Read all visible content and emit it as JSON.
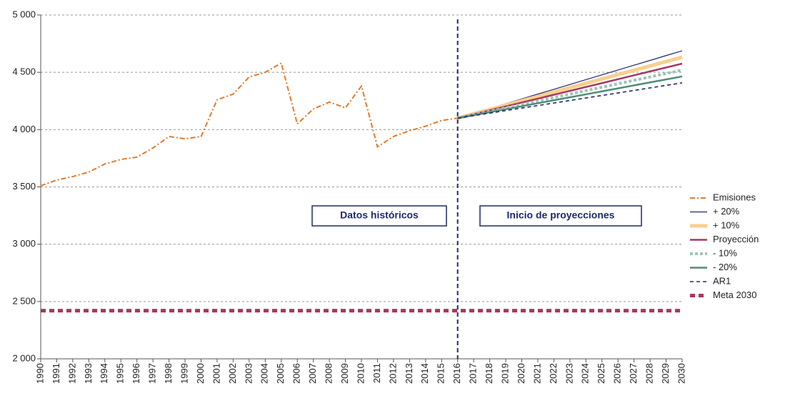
{
  "chart_data": {
    "type": "line",
    "categories": [
      "1990",
      "1991",
      "1992",
      "1993",
      "1994",
      "1995",
      "1996",
      "1997",
      "1998",
      "1999",
      "2000",
      "2001",
      "2002",
      "2003",
      "2004",
      "2005",
      "2006",
      "2007",
      "2008",
      "2009",
      "2010",
      "2011",
      "2012",
      "2013",
      "2014",
      "2015",
      "2016",
      "2017",
      "2018",
      "2019",
      "2020",
      "2021",
      "2022",
      "2023",
      "2024",
      "2025",
      "2026",
      "2027",
      "2028",
      "2029",
      "2030"
    ],
    "ylim": [
      2000,
      5000
    ],
    "yticks": [
      {
        "value": 2000,
        "label": "2 000"
      },
      {
        "value": 2500,
        "label": "2 500"
      },
      {
        "value": 3000,
        "label": "3 000"
      },
      {
        "value": 3500,
        "label": "3 500"
      },
      {
        "value": 4000,
        "label": "4 000"
      },
      {
        "value": 4500,
        "label": "4 500"
      },
      {
        "value": 5000,
        "label": "5 000"
      }
    ],
    "grid": true,
    "legend": "right",
    "projection_start": "2016",
    "annotations": [
      "Datos históricos",
      "Inicio de proyecciones"
    ],
    "series": [
      {
        "name": "Emisiones",
        "color": "#e07b2a",
        "style": "dashdot",
        "values": [
          3510,
          3560,
          3590,
          3630,
          3700,
          3740,
          3760,
          3840,
          3940,
          3920,
          3940,
          4260,
          4310,
          4460,
          4500,
          4580,
          4050,
          4180,
          4240,
          4190,
          4380,
          3850,
          3940,
          3990,
          4030,
          4080,
          4100,
          null,
          null,
          null,
          null,
          null,
          null,
          null,
          null,
          null,
          null,
          null,
          null,
          null,
          null
        ]
      },
      {
        "name": "+ 20%",
        "color": "#1f2a6b",
        "style": "thin",
        "values": [
          null,
          null,
          null,
          null,
          null,
          null,
          null,
          null,
          null,
          null,
          null,
          null,
          null,
          null,
          null,
          null,
          null,
          null,
          null,
          null,
          null,
          null,
          null,
          null,
          null,
          null,
          4100,
          4142,
          4184,
          4226,
          4268,
          4310,
          4352,
          4394,
          4436,
          4478,
          4520,
          4562,
          4604,
          4646,
          4688
        ]
      },
      {
        "name": "+ 10%",
        "color": "#f9cf8f",
        "style": "thick",
        "values": [
          null,
          null,
          null,
          null,
          null,
          null,
          null,
          null,
          null,
          null,
          null,
          null,
          null,
          null,
          null,
          null,
          null,
          null,
          null,
          null,
          null,
          null,
          null,
          null,
          null,
          null,
          4100,
          4138,
          4176,
          4214,
          4252,
          4290,
          4328,
          4366,
          4404,
          4442,
          4480,
          4518,
          4556,
          4594,
          4632
        ]
      },
      {
        "name": "Proyección",
        "color": "#a8365f",
        "style": "solid",
        "values": [
          null,
          null,
          null,
          null,
          null,
          null,
          null,
          null,
          null,
          null,
          null,
          null,
          null,
          null,
          null,
          null,
          null,
          null,
          null,
          null,
          null,
          null,
          null,
          null,
          null,
          null,
          4100,
          4134,
          4168,
          4202,
          4236,
          4270,
          4304,
          4338,
          4372,
          4406,
          4440,
          4474,
          4508,
          4542,
          4576
        ]
      },
      {
        "name": "- 10%",
        "color": "#9ec4b4",
        "style": "dotted",
        "values": [
          null,
          null,
          null,
          null,
          null,
          null,
          null,
          null,
          null,
          null,
          null,
          null,
          null,
          null,
          null,
          null,
          null,
          null,
          null,
          null,
          null,
          null,
          null,
          null,
          null,
          null,
          4100,
          4130,
          4160,
          4190,
          4220,
          4250,
          4280,
          4310,
          4340,
          4370,
          4400,
          4430,
          4460,
          4490,
          4520
        ]
      },
      {
        "name": "- 20%",
        "color": "#4f8c7a",
        "style": "solid",
        "values": [
          null,
          null,
          null,
          null,
          null,
          null,
          null,
          null,
          null,
          null,
          null,
          null,
          null,
          null,
          null,
          null,
          null,
          null,
          null,
          null,
          null,
          null,
          null,
          null,
          null,
          null,
          4100,
          4126,
          4152,
          4178,
          4204,
          4230,
          4256,
          4282,
          4308,
          4334,
          4360,
          4386,
          4412,
          4438,
          4464
        ]
      },
      {
        "name": "AR1",
        "color": "#1f2a6b",
        "style": "dashed",
        "values": [
          null,
          null,
          null,
          null,
          null,
          null,
          null,
          null,
          null,
          null,
          null,
          null,
          null,
          null,
          null,
          null,
          null,
          null,
          null,
          null,
          null,
          null,
          null,
          null,
          null,
          null,
          4100,
          4122,
          4144,
          4166,
          4188,
          4210,
          4232,
          4254,
          4276,
          4298,
          4320,
          4342,
          4364,
          4386,
          4408
        ]
      },
      {
        "name": "Meta 2030",
        "color": "#a8365f",
        "style": "dashed-thick",
        "values": [
          2420,
          2420,
          2420,
          2420,
          2420,
          2420,
          2420,
          2420,
          2420,
          2420,
          2420,
          2420,
          2420,
          2420,
          2420,
          2420,
          2420,
          2420,
          2420,
          2420,
          2420,
          2420,
          2420,
          2420,
          2420,
          2420,
          2420,
          2420,
          2420,
          2420,
          2420,
          2420,
          2420,
          2420,
          2420,
          2420,
          2420,
          2420,
          2420,
          2420,
          2420
        ]
      }
    ]
  }
}
